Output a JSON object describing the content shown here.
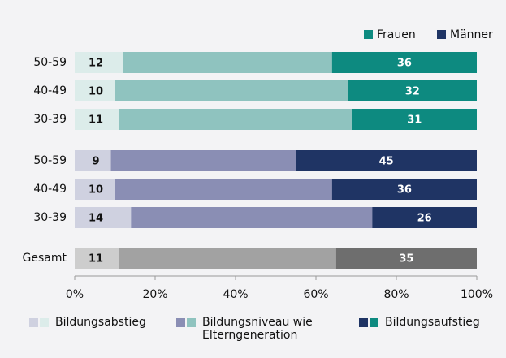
{
  "chart_data": {
    "type": "bar",
    "orientation": "horizontal",
    "stacked": true,
    "categories": [
      "50-59",
      "40-49",
      "30-39",
      "50-59",
      "40-49",
      "30-39",
      "Gesamt"
    ],
    "series": [
      {
        "name": "Bildungsabstieg",
        "values": [
          12,
          10,
          11,
          9,
          10,
          14,
          11
        ],
        "labels": true,
        "colors": [
          "#dcecea",
          "#dcecea",
          "#dcecea",
          "#cfd1e0",
          "#cfd1e0",
          "#cfd1e0",
          "#cdcdcd"
        ]
      },
      {
        "name": "Bildungsniveau wie Elterngeneration",
        "values": [
          52,
          58,
          58,
          46,
          54,
          60,
          54
        ],
        "labels": false,
        "colors": [
          "#8fc3bf",
          "#8fc3bf",
          "#8fc3bf",
          "#8a8eb4",
          "#8a8eb4",
          "#8a8eb4",
          "#a2a2a2"
        ]
      },
      {
        "name": "Bildungsaufstieg",
        "values": [
          36,
          32,
          31,
          45,
          36,
          26,
          35
        ],
        "labels": true,
        "colors": [
          "#0d8a80",
          "#0d8a80",
          "#0d8a80",
          "#1f3464",
          "#1f3464",
          "#1f3464",
          "#6e6e6e"
        ]
      }
    ],
    "legend": [
      {
        "name": "Frauen",
        "color": "#0d8a80"
      },
      {
        "name": "Männer",
        "color": "#1f3464"
      }
    ],
    "xlim": [
      0,
      100
    ],
    "xticks": [
      {
        "value": 0,
        "label": "0%"
      },
      {
        "value": 20,
        "label": "20%"
      },
      {
        "value": 40,
        "label": "40%"
      },
      {
        "value": 60,
        "label": "60%"
      },
      {
        "value": 80,
        "label": "80%"
      },
      {
        "value": 100,
        "label": "100%"
      }
    ]
  }
}
